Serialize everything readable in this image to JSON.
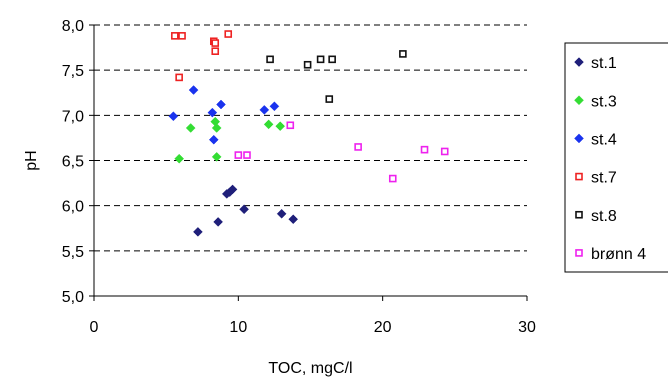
{
  "chart_data": {
    "type": "scatter",
    "title": "",
    "xlabel": "TOC, mgC/l",
    "ylabel": "pH",
    "xlim": [
      0,
      30
    ],
    "ylim": [
      5.0,
      8.0
    ],
    "x_ticks": [
      "0",
      "10",
      "20",
      "30"
    ],
    "y_ticks": [
      "5,0",
      "5,5",
      "6,0",
      "6,5",
      "7,0",
      "7,5",
      "8,0"
    ],
    "grid": "horizontal dashed",
    "legend_position": "right",
    "series": [
      {
        "name": "st.1",
        "marker": "diamond-filled",
        "color": "#1f1f7a",
        "points": [
          {
            "x": 7.2,
            "y": 5.71
          },
          {
            "x": 8.6,
            "y": 5.82
          },
          {
            "x": 9.2,
            "y": 6.13
          },
          {
            "x": 9.4,
            "y": 6.15
          },
          {
            "x": 9.6,
            "y": 6.18
          },
          {
            "x": 10.4,
            "y": 5.96
          },
          {
            "x": 13.0,
            "y": 5.91
          },
          {
            "x": 13.8,
            "y": 5.85
          }
        ]
      },
      {
        "name": "st.3",
        "marker": "diamond-filled",
        "color": "#33dd33",
        "points": [
          {
            "x": 5.9,
            "y": 6.52
          },
          {
            "x": 6.7,
            "y": 6.86
          },
          {
            "x": 8.4,
            "y": 6.93
          },
          {
            "x": 8.5,
            "y": 6.86
          },
          {
            "x": 8.5,
            "y": 6.54
          },
          {
            "x": 12.1,
            "y": 6.9
          },
          {
            "x": 12.9,
            "y": 6.88
          }
        ]
      },
      {
        "name": "st.4",
        "marker": "diamond-filled",
        "color": "#1a33ee",
        "points": [
          {
            "x": 5.5,
            "y": 6.99
          },
          {
            "x": 6.9,
            "y": 7.28
          },
          {
            "x": 8.2,
            "y": 7.03
          },
          {
            "x": 8.3,
            "y": 6.73
          },
          {
            "x": 8.8,
            "y": 7.12
          },
          {
            "x": 11.8,
            "y": 7.06
          },
          {
            "x": 12.5,
            "y": 7.1
          }
        ]
      },
      {
        "name": "st.7",
        "marker": "square-open",
        "color": "#ee2222",
        "points": [
          {
            "x": 5.6,
            "y": 7.88
          },
          {
            "x": 6.1,
            "y": 7.88
          },
          {
            "x": 5.9,
            "y": 7.42
          },
          {
            "x": 8.3,
            "y": 7.82
          },
          {
            "x": 8.4,
            "y": 7.8
          },
          {
            "x": 8.4,
            "y": 7.71
          },
          {
            "x": 9.3,
            "y": 7.9
          }
        ]
      },
      {
        "name": "st.8",
        "marker": "square-open",
        "color": "#111111",
        "points": [
          {
            "x": 12.2,
            "y": 7.62
          },
          {
            "x": 14.8,
            "y": 7.56
          },
          {
            "x": 15.7,
            "y": 7.62
          },
          {
            "x": 16.5,
            "y": 7.62
          },
          {
            "x": 16.3,
            "y": 7.18
          },
          {
            "x": 21.4,
            "y": 7.68
          }
        ]
      },
      {
        "name": "brønn 4",
        "marker": "square-open",
        "color": "#ee22ee",
        "points": [
          {
            "x": 10.0,
            "y": 6.56
          },
          {
            "x": 10.6,
            "y": 6.56
          },
          {
            "x": 13.6,
            "y": 6.89
          },
          {
            "x": 18.3,
            "y": 6.65
          },
          {
            "x": 20.7,
            "y": 6.3
          },
          {
            "x": 22.9,
            "y": 6.62
          },
          {
            "x": 24.3,
            "y": 6.6
          }
        ]
      }
    ]
  }
}
